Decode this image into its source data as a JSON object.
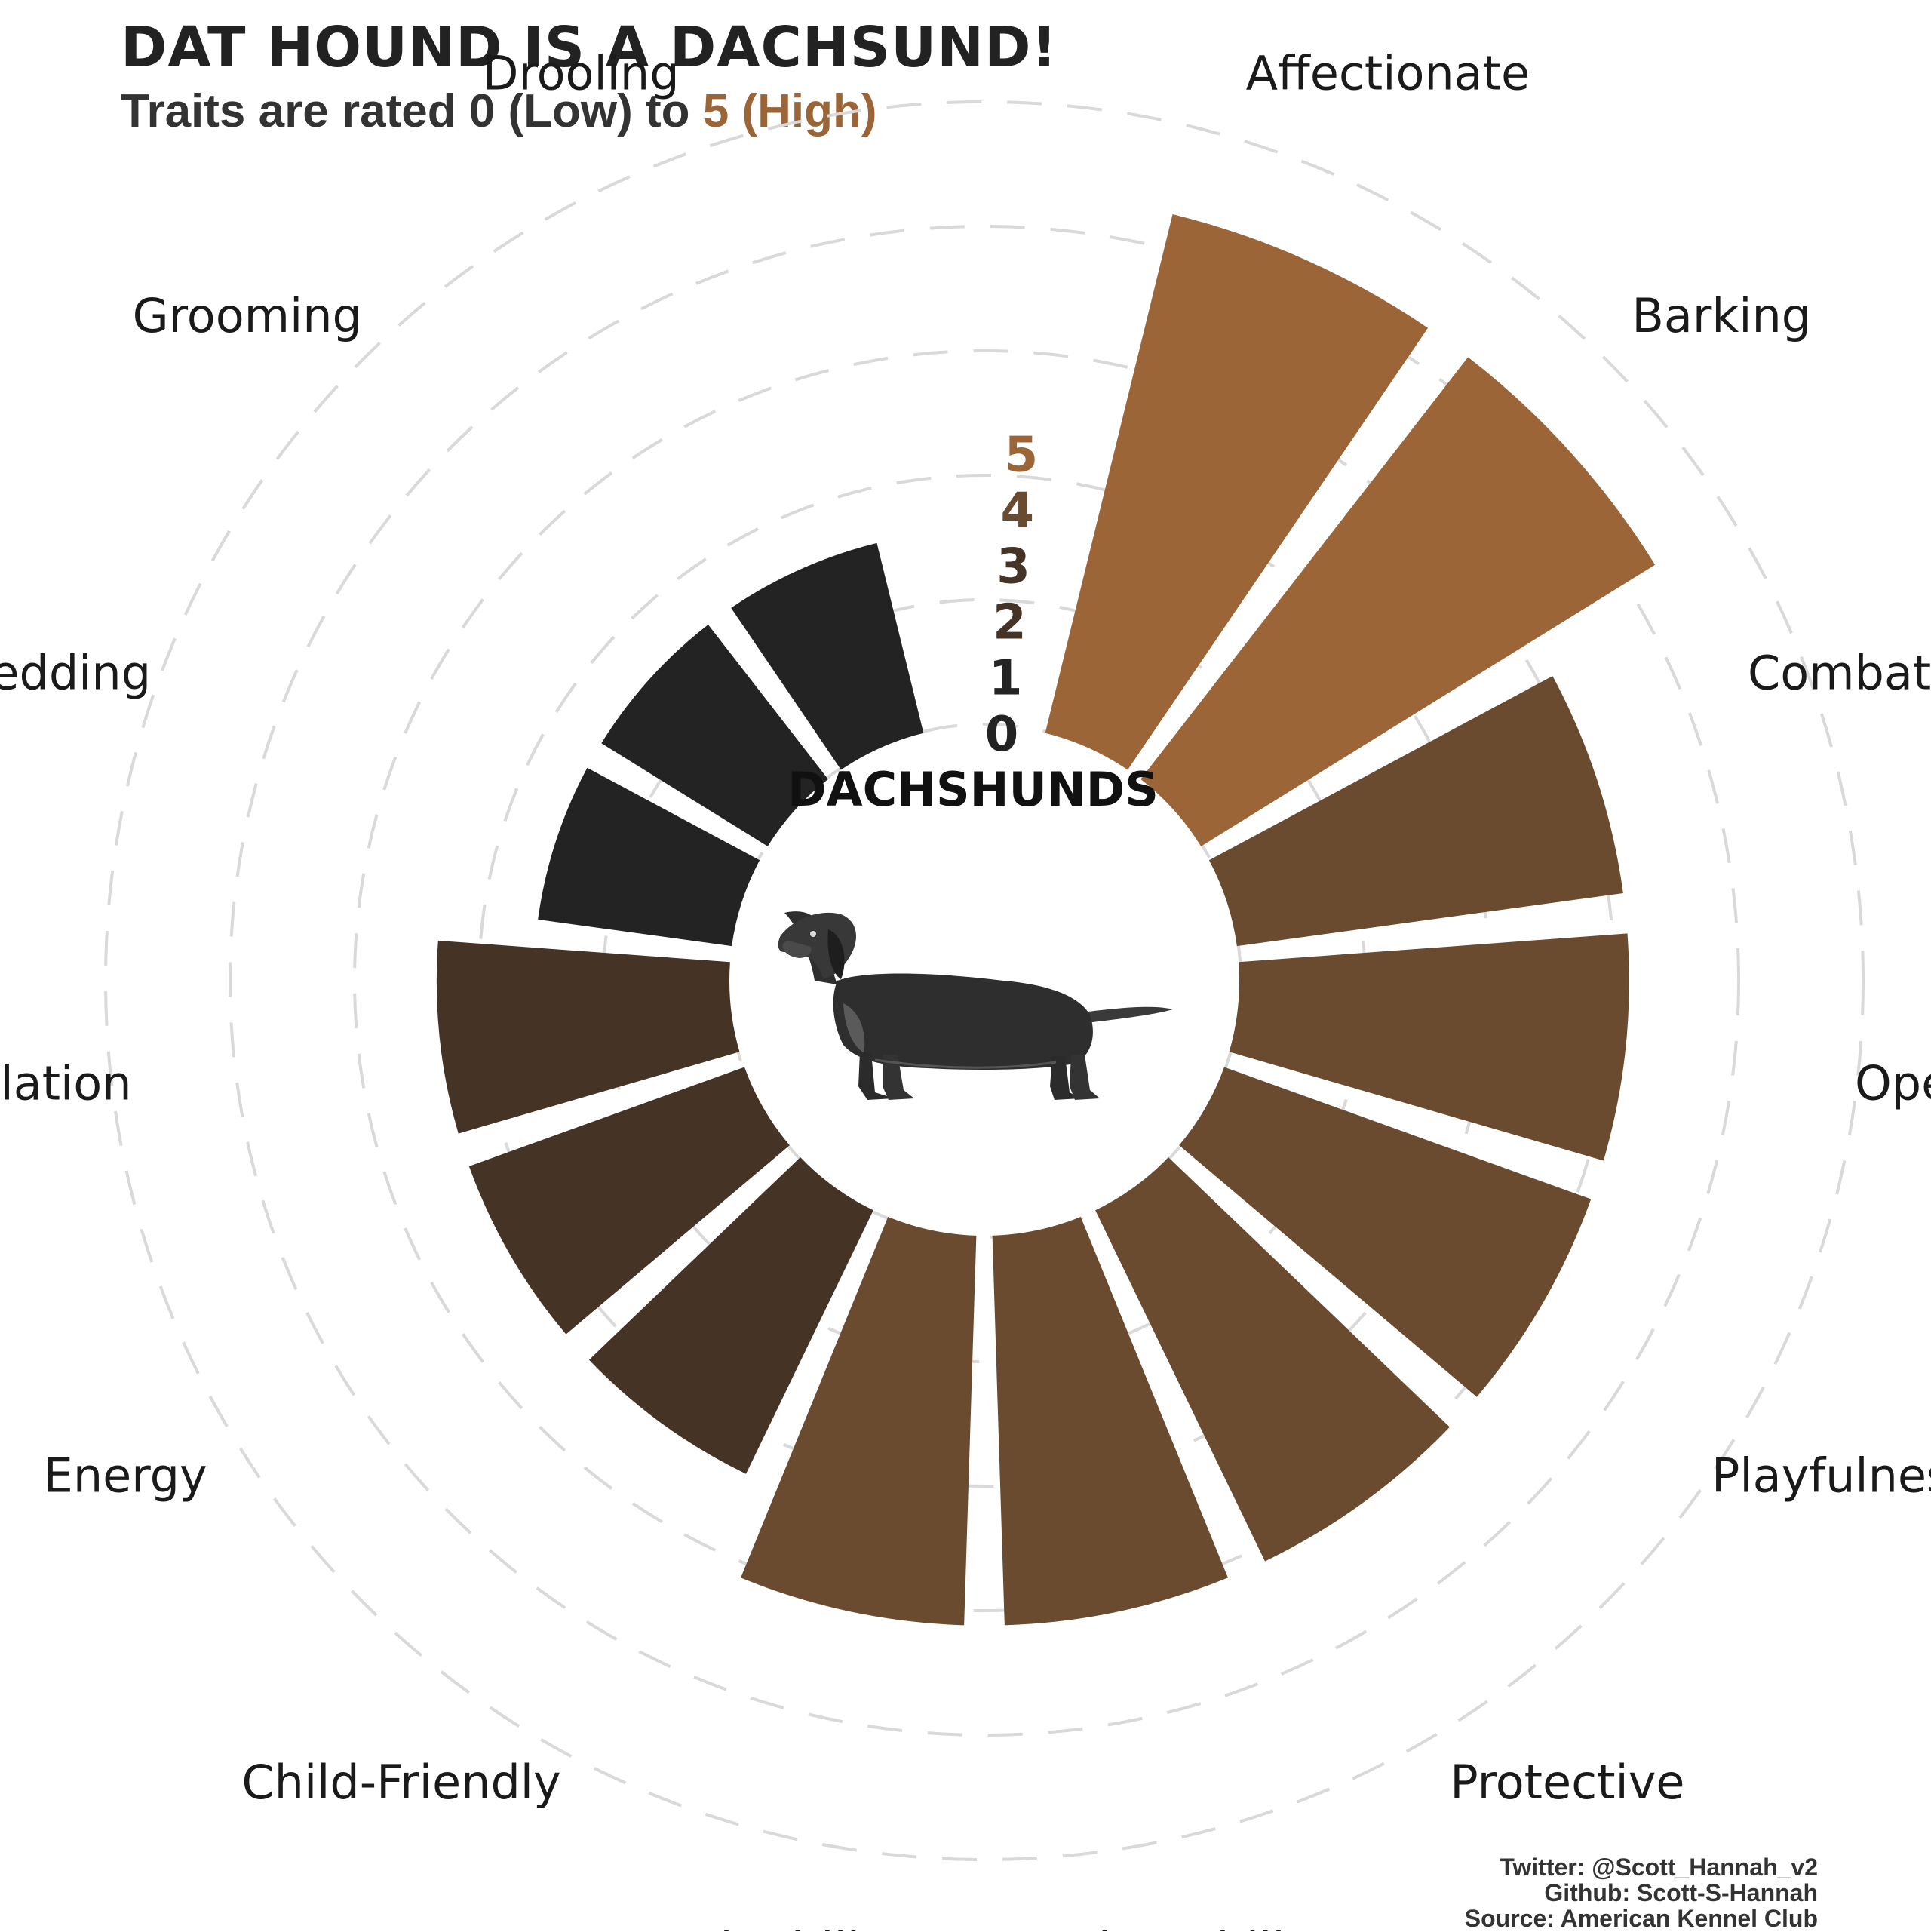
{
  "chart_data": {
    "type": "bar",
    "polar": true,
    "title": "DAT HOUND IS A DACHSUND!",
    "subtitle": {
      "prefix": "Traits are rated ",
      "low": "0 (Low)",
      "middle": " to ",
      "high": "5 (High)"
    },
    "center_label": "DACHSHUNDS",
    "categories": [
      "Affectionate",
      "Barking",
      "Combativeness",
      "Openness",
      "Playfulness",
      "Protective",
      "Adaptability",
      "Trainability",
      "Child-Friendly",
      "Energy",
      "Stimulation",
      "Shedding",
      "Grooming",
      "Drooling"
    ],
    "values": [
      5,
      5,
      4,
      4,
      4,
      4,
      4,
      4,
      3,
      3,
      3,
      2,
      2,
      2
    ],
    "ylim": [
      0,
      5
    ],
    "radial_ticks": [
      "0",
      "1",
      "2",
      "3",
      "4",
      "5"
    ],
    "colors": {
      "5": "#9B6538",
      "4": "#6B4B30",
      "3": "#453325",
      "2": "#232323"
    },
    "tick_colors": [
      "#232323",
      "#232323",
      "#453325",
      "#453325",
      "#6B4B30",
      "#9B6538"
    ],
    "grid": true
  },
  "credits": {
    "twitter": "Twitter: @Scott_Hannah_v2",
    "github": "Github: Scott-S-Hannah",
    "source": "Source: American Kennel Club"
  },
  "icons": {
    "center_image": "dachshund-illustration"
  }
}
